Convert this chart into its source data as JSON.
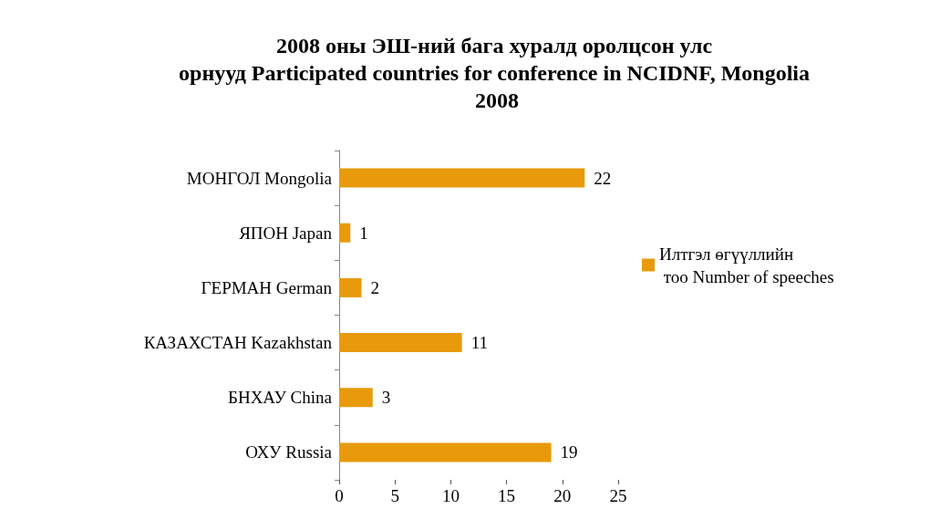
{
  "chart_data": {
    "type": "bar",
    "orientation": "horizontal",
    "title": "2008 оны ЭШ-ний бага хуралд оролцсон улс орнууд Participated countries for conference in NCIDNF, Mongolia 2008",
    "categories": [
      "МОНГОЛ Mongolia",
      "ЯПОН Japan",
      "ГЕРМАН German",
      "КАЗАХСТАН Kazakhstan",
      "БНХАУ China",
      "ОХУ Russia"
    ],
    "series": [
      {
        "name": "Илтгэл өгүүллийн тоо Number of speeches",
        "color": "#e89a0c",
        "values": [
          22,
          1,
          2,
          11,
          3,
          19
        ]
      }
    ],
    "xlim": [
      0,
      25
    ],
    "xticks": [
      0,
      5,
      10,
      15,
      20,
      25
    ],
    "data_labels": true,
    "grid": false,
    "legend": "right"
  }
}
